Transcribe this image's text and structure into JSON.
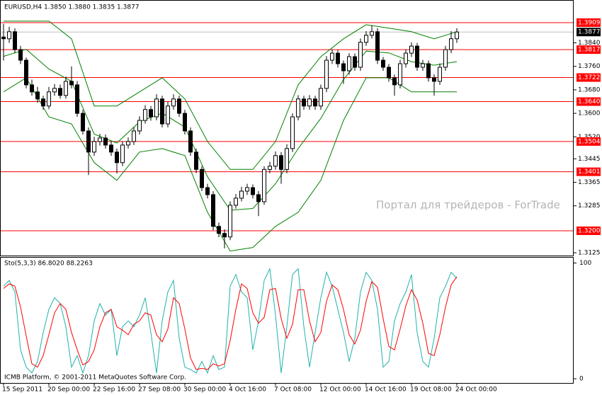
{
  "chart_data": [
    {
      "type": "candlestick",
      "title": "EURUSD,H4  1.3850 1.3880 1.3835 1.3877",
      "watermark": "Портал для трейдеров - ForTrade",
      "categories": [
        "15 Sep 2011",
        null,
        null,
        null,
        null,
        null,
        null,
        null,
        "20 Sep 00:00",
        null,
        null,
        null,
        null,
        null,
        null,
        null,
        "22 Sep 16:00",
        null,
        null,
        null,
        null,
        null,
        null,
        null,
        "27 Sep 08:00",
        null,
        null,
        null,
        null,
        null,
        null,
        null,
        "30 Sep 00:00",
        null,
        null,
        null,
        null,
        null,
        null,
        null,
        "4 Oct 16:00",
        null,
        null,
        null,
        null,
        null,
        null,
        null,
        "7 Oct 08:00",
        null,
        null,
        null,
        null,
        null,
        null,
        null,
        "12 Oct 00:00",
        null,
        null,
        null,
        null,
        null,
        null,
        null,
        "14 Oct 16:00",
        null,
        null,
        null,
        null,
        null,
        null,
        null,
        "19 Oct 08:00",
        null,
        null,
        null,
        null,
        null,
        null,
        null,
        "24 Oct 00:00"
      ],
      "open": [
        1.386,
        1.3854,
        1.3878,
        1.3817,
        1.3781,
        1.3697,
        1.3673,
        1.3649,
        1.3625,
        1.3673,
        1.3685,
        1.3661,
        1.3709,
        1.3697,
        1.36,
        1.354,
        1.3468,
        1.3504,
        1.3516,
        1.3492,
        1.3468,
        1.3432,
        1.3492,
        1.3504,
        1.354,
        1.3576,
        1.3613,
        1.3588,
        1.3649,
        1.3564,
        1.3625,
        1.3649,
        1.36,
        1.354,
        1.3468,
        1.3409,
        1.3347,
        1.3323,
        1.3215,
        1.3191,
        1.3179,
        1.3287,
        1.3311,
        1.3335,
        1.3347,
        1.3323,
        1.3299,
        1.3409,
        1.342,
        1.3456,
        1.3409,
        1.348,
        1.3588,
        1.3649,
        1.3625,
        1.3649,
        1.3625,
        1.3685,
        1.3781,
        1.3805,
        1.3769,
        1.3745,
        1.3793,
        1.3757,
        1.3842,
        1.3866,
        1.3878,
        1.3781,
        1.3757,
        1.3721,
        1.3697,
        1.3769,
        1.3805,
        1.3829,
        1.3757,
        1.3769,
        1.3721,
        1.3709,
        1.3757,
        1.3817,
        1.3854
      ],
      "high": [
        1.3905,
        1.3895,
        1.389,
        1.383,
        1.379,
        1.3715,
        1.369,
        1.366,
        1.369,
        1.37,
        1.3698,
        1.3725,
        1.376,
        1.371,
        1.3612,
        1.3552,
        1.352,
        1.353,
        1.3528,
        1.3505,
        1.348,
        1.3505,
        1.3518,
        1.3552,
        1.359,
        1.3628,
        1.3625,
        1.3665,
        1.366,
        1.364,
        1.3665,
        1.366,
        1.3612,
        1.3552,
        1.348,
        1.342,
        1.336,
        1.3335,
        1.3228,
        1.3205,
        1.33,
        1.3325,
        1.335,
        1.336,
        1.3358,
        1.3335,
        1.342,
        1.3435,
        1.347,
        1.3468,
        1.3495,
        1.36,
        1.3662,
        1.366,
        1.3662,
        1.366,
        1.3698,
        1.3795,
        1.3818,
        1.3816,
        1.378,
        1.3805,
        1.3804,
        1.3855,
        1.388,
        1.39,
        1.389,
        1.3792,
        1.3768,
        1.3732,
        1.3782,
        1.3818,
        1.3842,
        1.384,
        1.3782,
        1.378,
        1.3733,
        1.377,
        1.383,
        1.388,
        1.389
      ],
      "low": [
        1.378,
        1.384,
        1.3805,
        1.3768,
        1.3685,
        1.366,
        1.3636,
        1.3612,
        1.3614,
        1.366,
        1.365,
        1.365,
        1.3685,
        1.3588,
        1.3528,
        1.339,
        1.3455,
        1.349,
        1.348,
        1.3455,
        1.3395,
        1.342,
        1.348,
        1.3492,
        1.3528,
        1.3565,
        1.3575,
        1.3576,
        1.3552,
        1.3552,
        1.3612,
        1.3588,
        1.3528,
        1.3455,
        1.3396,
        1.3335,
        1.331,
        1.3202,
        1.3178,
        1.314,
        1.3168,
        1.3275,
        1.33,
        1.3322,
        1.331,
        1.325,
        1.3288,
        1.3396,
        1.3408,
        1.336,
        1.3396,
        1.3468,
        1.3576,
        1.3612,
        1.3612,
        1.3612,
        1.3612,
        1.3672,
        1.3768,
        1.3756,
        1.37,
        1.3732,
        1.3745,
        1.3745,
        1.383,
        1.3855,
        1.3768,
        1.3745,
        1.3708,
        1.366,
        1.3685,
        1.3756,
        1.3792,
        1.3745,
        1.3745,
        1.3708,
        1.366,
        1.3697,
        1.3745,
        1.3805,
        1.384
      ],
      "close": [
        1.3854,
        1.3878,
        1.3817,
        1.3781,
        1.3697,
        1.3673,
        1.3649,
        1.3625,
        1.3673,
        1.3685,
        1.3661,
        1.3709,
        1.3697,
        1.36,
        1.354,
        1.3468,
        1.3504,
        1.3516,
        1.3492,
        1.3468,
        1.3432,
        1.3492,
        1.3504,
        1.354,
        1.3576,
        1.3613,
        1.3588,
        1.3649,
        1.3564,
        1.3625,
        1.3649,
        1.36,
        1.354,
        1.3468,
        1.3409,
        1.3347,
        1.3323,
        1.3215,
        1.3191,
        1.3179,
        1.3287,
        1.3311,
        1.3335,
        1.3347,
        1.3323,
        1.3299,
        1.3409,
        1.342,
        1.3456,
        1.3409,
        1.348,
        1.3588,
        1.3649,
        1.3625,
        1.3649,
        1.3625,
        1.3685,
        1.3781,
        1.3805,
        1.3769,
        1.3745,
        1.3793,
        1.3757,
        1.3842,
        1.3866,
        1.3878,
        1.3781,
        1.3757,
        1.3721,
        1.3697,
        1.3769,
        1.3805,
        1.3829,
        1.3757,
        1.3769,
        1.3721,
        1.3709,
        1.3757,
        1.3817,
        1.3854,
        1.3877
      ],
      "color": "#000000",
      "bands": {
        "color": "#008000",
        "x": [
          0,
          4,
          8,
          12,
          16,
          20,
          24,
          28,
          32,
          36,
          40,
          44,
          48,
          52,
          56,
          60,
          64,
          68,
          72,
          76,
          80
        ],
        "upper": [
          1.3914,
          1.3914,
          1.3914,
          1.3854,
          1.3625,
          1.3625,
          1.3673,
          1.3721,
          1.3649,
          1.3504,
          1.3409,
          1.3409,
          1.3504,
          1.3697,
          1.3793,
          1.3854,
          1.3902,
          1.389,
          1.3878,
          1.3854,
          1.3878
        ],
        "middle": [
          1.3794,
          1.3818,
          1.3751,
          1.3709,
          1.3529,
          1.3499,
          1.3571,
          1.3601,
          1.3553,
          1.3384,
          1.327,
          1.3276,
          1.336,
          1.348,
          1.3583,
          1.3715,
          1.3812,
          1.3806,
          1.3776,
          1.3764,
          1.3776
        ],
        "lower": [
          1.3673,
          1.3721,
          1.3588,
          1.3564,
          1.3432,
          1.3372,
          1.3468,
          1.348,
          1.3456,
          1.3263,
          1.3131,
          1.3143,
          1.3215,
          1.3263,
          1.3372,
          1.3576,
          1.3721,
          1.3721,
          1.3673,
          1.3673,
          1.3673
        ]
      },
      "levels": [
        1.3909,
        1.3817,
        1.3722,
        {
          "value": 1.364,
          "label": "1.3640"
        },
        1.3504,
        1.3401,
        {
          "value": 1.32,
          "label": "1.3200"
        }
      ],
      "level_color": "#ff0000",
      "current_price": 1.3877,
      "ylim": [
        1.3118,
        1.3933
      ],
      "yticks": [
        1.3125,
        1.3285,
        1.3365,
        1.3445,
        {
          "value": 1.352,
          "label": "1.3520"
        },
        {
          "value": 1.36,
          "label": "1.3600"
        },
        {
          "value": 1.368,
          "label": "1.3680"
        },
        {
          "value": 1.376,
          "label": "1.3760"
        },
        {
          "value": 1.384,
          "label": "1.3840"
        }
      ]
    },
    {
      "type": "line",
      "title": "Sto(5,3,3) 86.8020 88.2263",
      "annotation": "ICMB Platform, © 2001-2011 MetaQuotes Software Corp.",
      "series": [
        {
          "color": "#20b2aa",
          "values": [
            80,
            85,
            75,
            25,
            10,
            5,
            15,
            40,
            60,
            70,
            65,
            45,
            10,
            20,
            5,
            20,
            50,
            65,
            55,
            60,
            20,
            45,
            50,
            45,
            55,
            70,
            40,
            5,
            50,
            75,
            85,
            35,
            10,
            8,
            5,
            15,
            5,
            20,
            8,
            10,
            80,
            90,
            75,
            70,
            25,
            50,
            85,
            95,
            55,
            5,
            45,
            90,
            95,
            45,
            10,
            40,
            70,
            92,
            80,
            60,
            40,
            15,
            35,
            75,
            92,
            85,
            60,
            10,
            15,
            50,
            65,
            75,
            90,
            40,
            15,
            10,
            35,
            70,
            80,
            92,
            86.802
          ]
        },
        {
          "color": "#ff0000",
          "values": [
            78,
            82,
            80,
            62,
            37,
            13,
            10,
            20,
            38,
            57,
            65,
            60,
            40,
            25,
            12,
            15,
            25,
            45,
            57,
            60,
            45,
            42,
            38,
            47,
            50,
            57,
            55,
            38,
            32,
            43,
            70,
            65,
            43,
            18,
            8,
            9,
            8,
            13,
            11,
            13,
            33,
            60,
            82,
            78,
            57,
            48,
            53,
            77,
            78,
            52,
            35,
            47,
            77,
            77,
            50,
            32,
            40,
            67,
            81,
            77,
            60,
            38,
            30,
            42,
            67,
            84,
            79,
            52,
            28,
            25,
            43,
            63,
            77,
            68,
            48,
            22,
            20,
            38,
            62,
            81,
            88.2263
          ]
        }
      ],
      "ylim": [
        -3,
        104
      ],
      "yticks": [
        0,
        100
      ]
    }
  ]
}
